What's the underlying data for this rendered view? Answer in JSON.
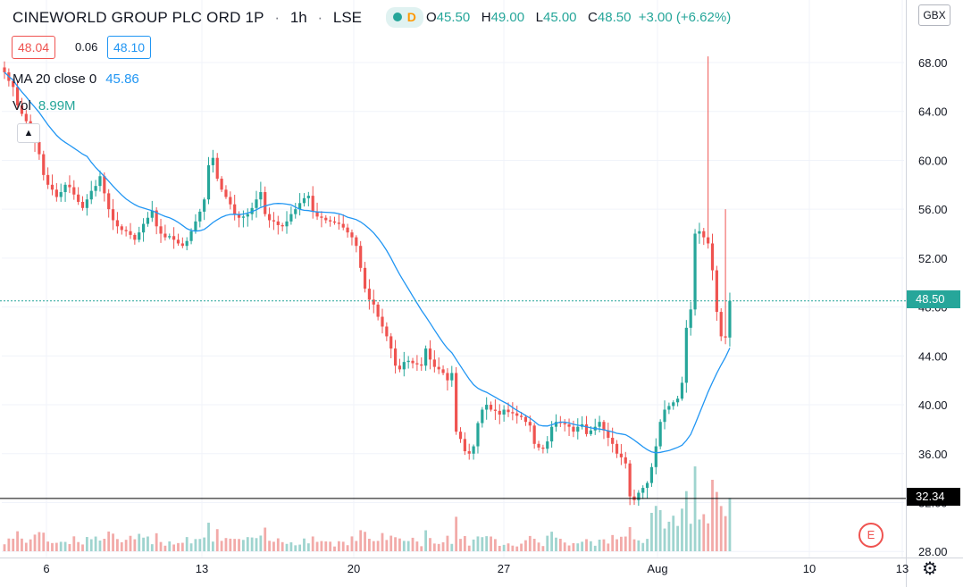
{
  "header": {
    "symbol": "CINEWORLD GROUP PLC ORD 1P",
    "interval": "1h",
    "exchange": "LSE",
    "session_badge": "D",
    "ohlc": {
      "open_label": "O",
      "open": "45.50",
      "high_label": "H",
      "high": "49.00",
      "low_label": "L",
      "low": "45.00",
      "close_label": "C",
      "close": "48.50",
      "change": "+3.00 (+6.62%)"
    },
    "bid": "48.04",
    "spread": "0.06",
    "ask": "48.10"
  },
  "indicators": {
    "ma_label": "MA 20 close 0",
    "ma_value": "45.86",
    "vol_label": "Vol",
    "vol_value": "8.99M"
  },
  "currency": "GBX",
  "price_labels": {
    "last": "48.50",
    "horizontal_line": "32.34"
  },
  "earnings_marker": "E",
  "colors": {
    "up": "#26a69a",
    "down": "#ef5350",
    "ma": "#2196f3",
    "vol_up": "#9fd4cf",
    "vol_down": "#f2aaa8",
    "last_line": "#26a69a",
    "horizontal_line": "#000000"
  },
  "chart_data": {
    "type": "candlestick",
    "yaxis_ticks": [
      "68.00",
      "64.00",
      "60.00",
      "56.00",
      "52.00",
      "48.00",
      "44.00",
      "40.00",
      "36.00",
      "32.00",
      "28.00"
    ],
    "ylim": [
      28,
      70
    ],
    "xaxis_ticks": [
      "6",
      "13",
      "20",
      "27",
      "Aug",
      "10",
      "13"
    ],
    "last_price": 48.5,
    "horizontal_line": 32.34,
    "price_path": [
      [
        67.2,
        66.5,
        66.0,
        64.5,
        63.8,
        63.2,
        62.0,
        61.5
      ],
      [
        60.5,
        58.8,
        58.0,
        57.6,
        57.0,
        57.4,
        58.0,
        57.8
      ],
      [
        57.2,
        56.6,
        56.1,
        56.8,
        57.5,
        57.9,
        58.7,
        57.3
      ],
      [
        56.0,
        55.1,
        54.6,
        54.3,
        54.2,
        53.9,
        53.5,
        54.1
      ],
      [
        54.8,
        55.3,
        55.9,
        54.6,
        54.0,
        53.7,
        53.8,
        53.5
      ],
      [
        53.2,
        53.0,
        53.4,
        54.2,
        55.0,
        55.8,
        56.8,
        59.6
      ],
      [
        60.2,
        58.5,
        57.6,
        57.0,
        56.4,
        55.6,
        55.3,
        55.4
      ],
      [
        55.6,
        56.1,
        56.8,
        57.4,
        55.6,
        55.1,
        55.0,
        54.7
      ],
      [
        54.6,
        55.0,
        55.6,
        56.0,
        56.5,
        56.9,
        57.1,
        55.8
      ],
      [
        55.4,
        55.3,
        55.1,
        55.0,
        54.9,
        54.8,
        54.5,
        54.1
      ],
      [
        53.7,
        53.0,
        51.2,
        49.5,
        48.6,
        48.2,
        47.2,
        46.4
      ],
      [
        45.6,
        44.6,
        43.2,
        42.9,
        43.5,
        43.6,
        43.4,
        43.3
      ],
      [
        43.2,
        44.6,
        43.7,
        43.1,
        42.9,
        42.6,
        42.0,
        42.6
      ],
      [
        37.8,
        37.2,
        36.2,
        36.0,
        36.6,
        38.5,
        39.6,
        40.0
      ],
      [
        39.6,
        39.5,
        39.2,
        39.6,
        39.4,
        39.3,
        39.1,
        39.0
      ],
      [
        38.6,
        38.3,
        36.8,
        36.5,
        36.4,
        37.0,
        38.2,
        38.6
      ],
      [
        38.5,
        38.4,
        38.2,
        37.8,
        38.2,
        38.4,
        37.6,
        37.9
      ],
      [
        38.2,
        38.6,
        37.9,
        37.3,
        36.8,
        36.0,
        35.7,
        35.2
      ],
      [
        32.5,
        32.2,
        32.8,
        33.2,
        33.6,
        34.9,
        36.6,
        38.6
      ],
      [
        39.6,
        39.9,
        40.2,
        40.5,
        41.8,
        46.3,
        47.8,
        54.0
      ],
      [
        54.2,
        53.7,
        53.2,
        51.0,
        47.6,
        45.6,
        45.5,
        48.5
      ]
    ]
  }
}
